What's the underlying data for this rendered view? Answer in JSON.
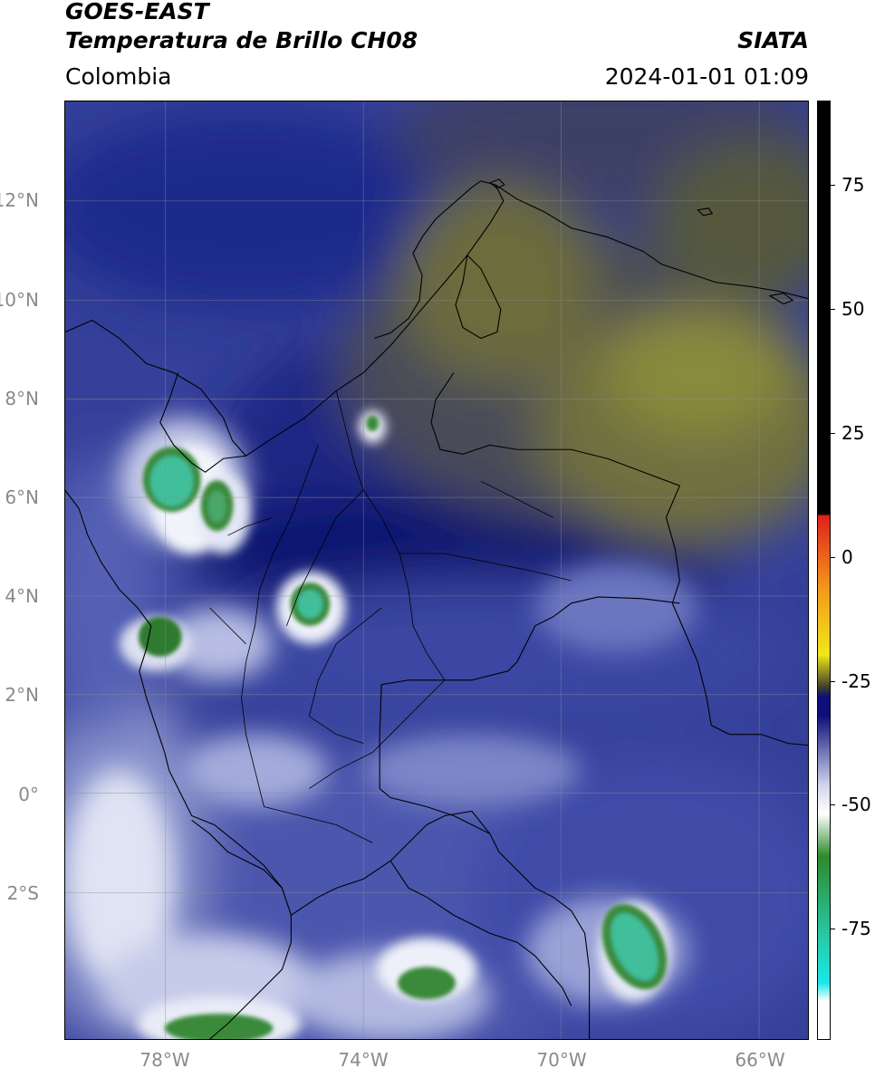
{
  "header": {
    "title_line1": "GOES-EAST",
    "title_line2": "Temperatura de Brillo CH08",
    "organization": "SIATA",
    "region": "Colombia",
    "datetime": "2024-01-01 01:09"
  },
  "map": {
    "lat_ticks": [
      "12°N",
      "10°N",
      "8°N",
      "6°N",
      "4°N",
      "2°N",
      "0°",
      "2°S"
    ],
    "lon_ticks": [
      "78°W",
      "74°W",
      "70°W",
      "66°W"
    ],
    "colors": {
      "ocean_base": "#35409a",
      "deep_blue": "#0b1670",
      "olive_dry": "#7e7e3a",
      "dark_slate": "#3a3c55",
      "cloud_white": "#e8ecf6",
      "cloud_green": "#3b8a3a",
      "cloud_teal": "#3fbf9a",
      "border_color": "#000000"
    }
  },
  "colorbar": {
    "ticks": [
      "75",
      "50",
      "25",
      "0",
      "-25",
      "-50",
      "-75"
    ],
    "colors": {
      "warm_black": "#000000",
      "red": "#e0201a",
      "orange": "#f39a1a",
      "yellow": "#f2e61a",
      "dark_olive": "#3e3e2a",
      "navy": "#0c0f7a",
      "lavender": "#d2d6ee",
      "white": "#ffffff",
      "green": "#2e8a2a",
      "teal": "#27c9a6",
      "cyan": "#19e8e8"
    }
  }
}
